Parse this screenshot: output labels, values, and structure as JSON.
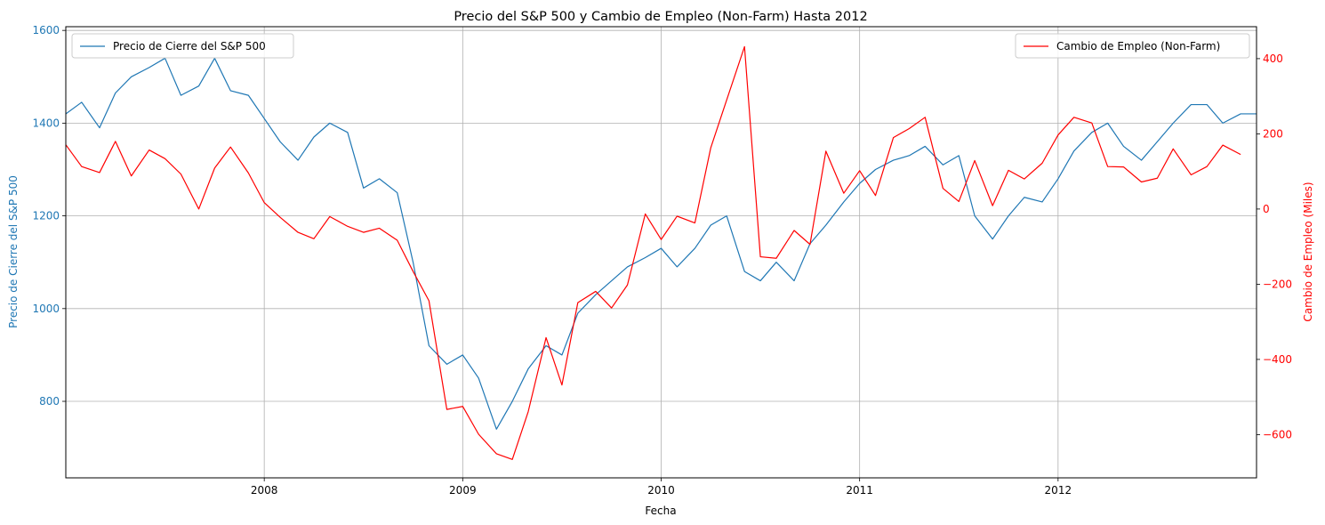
{
  "chart_data": {
    "type": "line",
    "title": "Precio del S&P 500 y Cambio de Empleo (Non-Farm) Hasta 2012",
    "xlabel": "Fecha",
    "x_ticks": [
      "2008",
      "2009",
      "2010",
      "2011",
      "2012"
    ],
    "x_range": [
      2007.0,
      2013.0
    ],
    "grid": true,
    "colors": {
      "sp500": "#1f77b4",
      "jobs": "#ff0000"
    },
    "left_axis": {
      "label": "Precio de Cierre del S&P 500",
      "range": [
        635,
        1608
      ],
      "ticks": [
        800,
        1000,
        1200,
        1400,
        1600
      ]
    },
    "right_axis": {
      "label": "Cambio de Empleo (Miles)",
      "range": [
        -715,
        485
      ],
      "ticks": [
        -600,
        -400,
        -200,
        0,
        200,
        400
      ]
    },
    "legends": [
      {
        "label": "Precio de Cierre del S&P 500",
        "position": "upper-left",
        "series": "sp500"
      },
      {
        "label": "Cambio de Empleo (Non-Farm)",
        "position": "upper-right",
        "series": "jobs"
      }
    ],
    "series": [
      {
        "name": "Precio de Cierre del S&P 500",
        "axis": "left",
        "color": "#1f77b4",
        "x": [
          2007.0,
          2007.08,
          2007.17,
          2007.25,
          2007.33,
          2007.42,
          2007.5,
          2007.58,
          2007.67,
          2007.75,
          2007.83,
          2007.92,
          2008.0,
          2008.08,
          2008.17,
          2008.25,
          2008.33,
          2008.42,
          2008.5,
          2008.58,
          2008.67,
          2008.75,
          2008.83,
          2008.92,
          2009.0,
          2009.08,
          2009.17,
          2009.25,
          2009.33,
          2009.42,
          2009.5,
          2009.58,
          2009.67,
          2009.75,
          2009.83,
          2009.92,
          2010.0,
          2010.08,
          2010.17,
          2010.25,
          2010.33,
          2010.42,
          2010.5,
          2010.58,
          2010.67,
          2010.75,
          2010.83,
          2010.92,
          2011.0,
          2011.08,
          2011.17,
          2011.25,
          2011.33,
          2011.42,
          2011.5,
          2011.58,
          2011.67,
          2011.75,
          2011.83,
          2011.92,
          2012.0,
          2012.08,
          2012.17,
          2012.25,
          2012.33,
          2012.42,
          2012.5,
          2012.58,
          2012.67,
          2012.75,
          2012.83,
          2012.92,
          2013.0
        ],
        "values": [
          1420,
          1445,
          1390,
          1465,
          1500,
          1520,
          1540,
          1460,
          1480,
          1540,
          1470,
          1460,
          1410,
          1360,
          1320,
          1370,
          1400,
          1380,
          1260,
          1280,
          1250,
          1100,
          920,
          880,
          900,
          850,
          740,
          800,
          870,
          920,
          900,
          990,
          1030,
          1060,
          1090,
          1110,
          1130,
          1090,
          1130,
          1180,
          1200,
          1080,
          1060,
          1100,
          1060,
          1140,
          1180,
          1230,
          1270,
          1300,
          1320,
          1330,
          1350,
          1310,
          1330,
          1200,
          1150,
          1200,
          1240,
          1230,
          1280,
          1340,
          1380,
          1400,
          1350,
          1320,
          1360,
          1400,
          1440,
          1440,
          1400,
          1420,
          1420
        ]
      },
      {
        "name": "Cambio de Empleo (Non-Farm)",
        "axis": "right",
        "color": "#ff0000",
        "x": [
          2007.0,
          2007.08,
          2007.17,
          2007.25,
          2007.33,
          2007.42,
          2007.5,
          2007.58,
          2007.67,
          2007.75,
          2007.83,
          2007.92,
          2008.0,
          2008.08,
          2008.17,
          2008.25,
          2008.33,
          2008.42,
          2008.5,
          2008.58,
          2008.67,
          2008.75,
          2008.83,
          2008.92,
          2009.0,
          2009.08,
          2009.17,
          2009.25,
          2009.33,
          2009.42,
          2009.5,
          2009.58,
          2009.67,
          2009.75,
          2009.83,
          2009.92,
          2010.0,
          2010.08,
          2010.17,
          2010.25,
          2010.33,
          2010.42,
          2010.5,
          2010.58,
          2010.67,
          2010.75,
          2010.83,
          2010.92,
          2011.0,
          2011.08,
          2011.17,
          2011.25,
          2011.33,
          2011.42,
          2011.5,
          2011.58,
          2011.67,
          2011.75,
          2011.83,
          2011.92,
          2012.0,
          2012.08,
          2012.17,
          2012.25,
          2012.33,
          2012.42,
          2012.5,
          2012.58,
          2012.67,
          2012.75,
          2012.83,
          2012.92
        ],
        "values": [
          171,
          113,
          97,
          180,
          88,
          157,
          134,
          93,
          0,
          109,
          165,
          96,
          17,
          -22,
          -62,
          -79,
          -20,
          -46,
          -62,
          -51,
          -83,
          -166,
          -244,
          -533,
          -525,
          -599,
          -651,
          -666,
          -539,
          -342,
          -468,
          -249,
          -219,
          -263,
          -202,
          -13,
          -81,
          -19,
          -37,
          163,
          290,
          432,
          -127,
          -131,
          -57,
          -94,
          154,
          42,
          102,
          36,
          190,
          214,
          244,
          55,
          20,
          129,
          9,
          103,
          80,
          122,
          197,
          244,
          229,
          113,
          112,
          72,
          82,
          160,
          91,
          113,
          170,
          145
        ]
      }
    ]
  }
}
